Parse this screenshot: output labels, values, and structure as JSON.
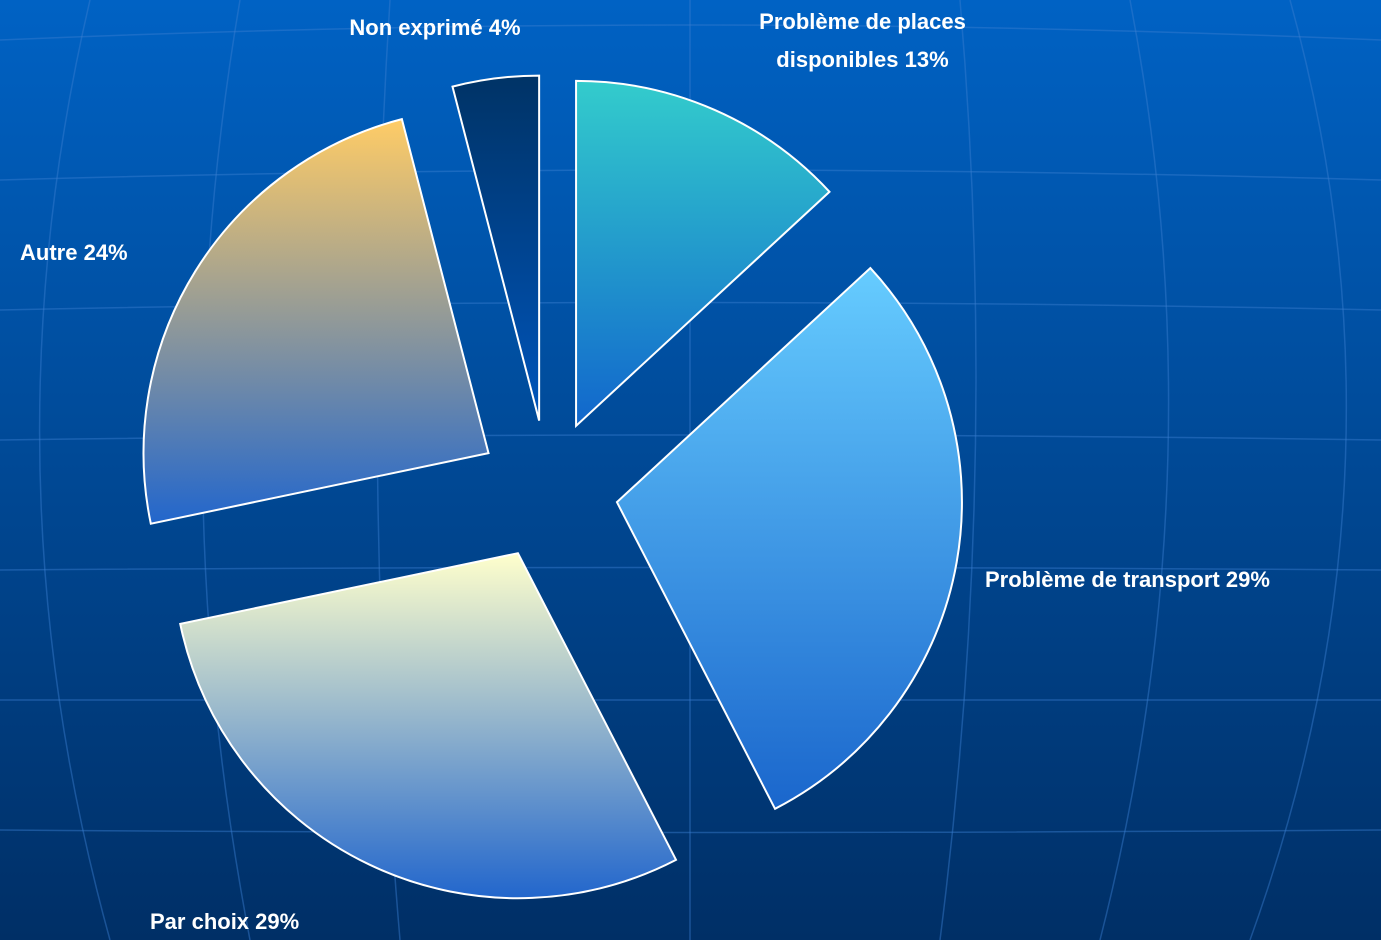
{
  "chart_data": {
    "type": "pie",
    "categories": [
      "Problème de places disponibles",
      "Problème de transport",
      "Par choix",
      "Autre",
      "Non exprimé"
    ],
    "values": [
      13,
      29,
      29,
      24,
      4
    ],
    "value_labels": [
      "13%",
      "29%",
      "29%",
      "24%",
      "4%"
    ],
    "colors": [
      "#33cccc",
      "#66ccff",
      "#ffffcc",
      "#ffcc66",
      "#003366"
    ],
    "exploded": true
  }
}
